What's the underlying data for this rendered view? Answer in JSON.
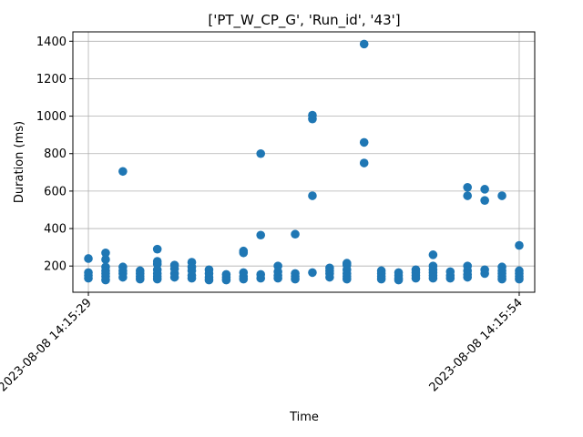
{
  "chart_data": {
    "type": "scatter",
    "title": "['PT_W_CP_G', 'Run_id', '43']",
    "xlabel": "Time",
    "ylabel": "Duration (ms)",
    "x_tick_labels": [
      "2023-08-08 14:15:29",
      "2023-08-08 14:15:54"
    ],
    "x_unit": "seconds after 2023-08-08 14:15:29",
    "xlim": [
      -0.9,
      25.9
    ],
    "ylim": [
      60,
      1450
    ],
    "yticks": [
      200,
      400,
      600,
      800,
      1000,
      1200,
      1400
    ],
    "grid": true,
    "marker_color": "#1f77b4",
    "points": [
      [
        0,
        240
      ],
      [
        0,
        165
      ],
      [
        0,
        150
      ],
      [
        0,
        135
      ],
      [
        1,
        270
      ],
      [
        1,
        235
      ],
      [
        1,
        195
      ],
      [
        1,
        175
      ],
      [
        1,
        160
      ],
      [
        1,
        145
      ],
      [
        1,
        125
      ],
      [
        2,
        705
      ],
      [
        2,
        195
      ],
      [
        2,
        175
      ],
      [
        2,
        160
      ],
      [
        2,
        140
      ],
      [
        3,
        175
      ],
      [
        3,
        160
      ],
      [
        3,
        145
      ],
      [
        3,
        130
      ],
      [
        4,
        290
      ],
      [
        4,
        225
      ],
      [
        4,
        210
      ],
      [
        4,
        180
      ],
      [
        4,
        160
      ],
      [
        4,
        145
      ],
      [
        4,
        130
      ],
      [
        5,
        205
      ],
      [
        5,
        185
      ],
      [
        5,
        160
      ],
      [
        5,
        140
      ],
      [
        6,
        220
      ],
      [
        6,
        195
      ],
      [
        6,
        175
      ],
      [
        6,
        150
      ],
      [
        6,
        135
      ],
      [
        7,
        180
      ],
      [
        7,
        160
      ],
      [
        7,
        140
      ],
      [
        7,
        125
      ],
      [
        8,
        155
      ],
      [
        8,
        140
      ],
      [
        8,
        125
      ],
      [
        9,
        280
      ],
      [
        9,
        270
      ],
      [
        9,
        165
      ],
      [
        9,
        145
      ],
      [
        9,
        130
      ],
      [
        10,
        800
      ],
      [
        10,
        365
      ],
      [
        10,
        155
      ],
      [
        10,
        135
      ],
      [
        11,
        200
      ],
      [
        11,
        170
      ],
      [
        11,
        150
      ],
      [
        11,
        135
      ],
      [
        12,
        370
      ],
      [
        12,
        160
      ],
      [
        12,
        145
      ],
      [
        12,
        130
      ],
      [
        13,
        1005
      ],
      [
        13,
        985
      ],
      [
        13,
        575
      ],
      [
        13,
        165
      ],
      [
        14,
        190
      ],
      [
        14,
        175
      ],
      [
        14,
        160
      ],
      [
        14,
        140
      ],
      [
        15,
        215
      ],
      [
        15,
        205
      ],
      [
        15,
        180
      ],
      [
        15,
        160
      ],
      [
        15,
        145
      ],
      [
        15,
        130
      ],
      [
        16,
        1385
      ],
      [
        16,
        860
      ],
      [
        16,
        750
      ],
      [
        17,
        175
      ],
      [
        17,
        160
      ],
      [
        17,
        145
      ],
      [
        17,
        130
      ],
      [
        18,
        165
      ],
      [
        18,
        150
      ],
      [
        18,
        135
      ],
      [
        18,
        125
      ],
      [
        19,
        180
      ],
      [
        19,
        165
      ],
      [
        19,
        150
      ],
      [
        19,
        135
      ],
      [
        20,
        260
      ],
      [
        20,
        200
      ],
      [
        20,
        180
      ],
      [
        20,
        165
      ],
      [
        20,
        150
      ],
      [
        20,
        135
      ],
      [
        21,
        170
      ],
      [
        21,
        150
      ],
      [
        21,
        135
      ],
      [
        22,
        620
      ],
      [
        22,
        575
      ],
      [
        22,
        200
      ],
      [
        22,
        175
      ],
      [
        22,
        155
      ],
      [
        22,
        140
      ],
      [
        23,
        610
      ],
      [
        23,
        550
      ],
      [
        23,
        180
      ],
      [
        23,
        160
      ],
      [
        24,
        575
      ],
      [
        24,
        195
      ],
      [
        24,
        175
      ],
      [
        24,
        160
      ],
      [
        24,
        145
      ],
      [
        24,
        130
      ],
      [
        25,
        310
      ],
      [
        25,
        175
      ],
      [
        25,
        160
      ],
      [
        25,
        145
      ],
      [
        25,
        130
      ]
    ]
  }
}
